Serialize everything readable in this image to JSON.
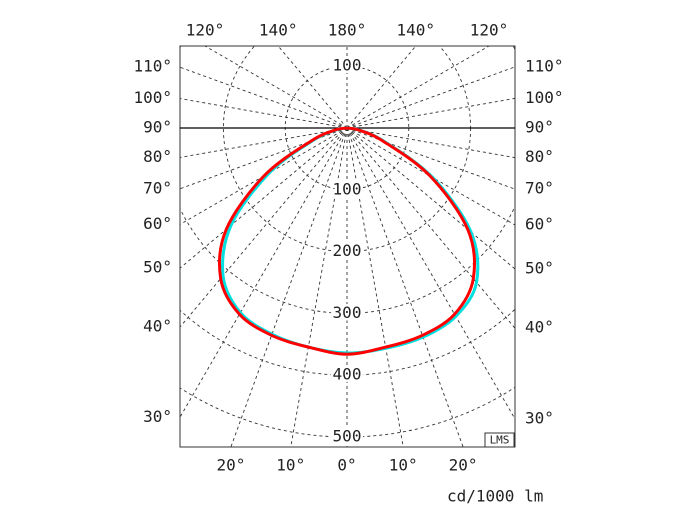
{
  "chart_data": {
    "type": "polar",
    "units": "cd/1000 lm",
    "badge": "LMS",
    "x": [
      -90,
      -80,
      -70,
      -60,
      -50,
      -40,
      -30,
      -20,
      -10,
      0,
      10,
      20,
      30,
      40,
      50,
      60,
      70,
      80,
      90
    ],
    "series": [
      {
        "color": "#00e0e0",
        "values": [
          0,
          18,
          58,
          145,
          245,
          312,
          345,
          355,
          360,
          364,
          362,
          360,
          352,
          326,
          262,
          160,
          65,
          22,
          0
        ]
      },
      {
        "color": "#ff0000",
        "values": [
          0,
          20,
          62,
          155,
          255,
          318,
          348,
          357,
          360,
          366,
          360,
          357,
          348,
          318,
          255,
          155,
          62,
          20,
          0
        ]
      }
    ],
    "rlim": [
      0,
      500
    ],
    "rticks": [
      100,
      200,
      300,
      400,
      500
    ],
    "angle_ticks_side": [
      {
        "value": 30,
        "label": "30°"
      },
      {
        "value": 40,
        "label": "40°"
      },
      {
        "value": 50,
        "label": "50°"
      },
      {
        "value": 60,
        "label": "60°"
      },
      {
        "value": 70,
        "label": "70°"
      },
      {
        "value": 80,
        "label": "80°"
      },
      {
        "value": 90,
        "label": "90°"
      },
      {
        "value": 100,
        "label": "100°"
      },
      {
        "value": 110,
        "label": "110°"
      }
    ],
    "angle_ticks_top": [
      {
        "value": 120,
        "label": "120°"
      },
      {
        "value": 140,
        "label": "140°"
      },
      {
        "value": 180,
        "label": "180°"
      },
      {
        "value": 140,
        "label": "140°"
      },
      {
        "value": 120,
        "label": "120°"
      }
    ],
    "angle_ticks_bottom": [
      {
        "value": 20,
        "label": "20°"
      },
      {
        "value": 10,
        "label": "10°"
      },
      {
        "value": 0,
        "label": "0°"
      },
      {
        "value": 10,
        "label": "10°"
      },
      {
        "value": 20,
        "label": "20°"
      }
    ]
  }
}
